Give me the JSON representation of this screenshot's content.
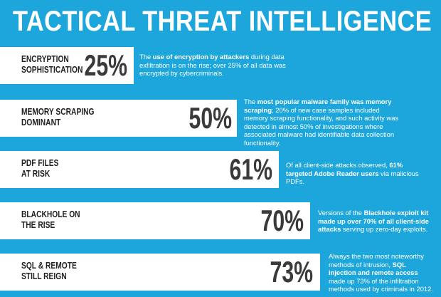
{
  "title": "TACTICAL THREAT INTELLIGENCE",
  "rows": [
    {
      "label": "ENCRYPTION\nSOPHISTICATION",
      "percent": "25%",
      "desc_parts": [
        {
          "t": "The ",
          "b": false
        },
        {
          "t": "use of encryption by attackers",
          "b": true
        },
        {
          "t": " during data exfiltration is on the rise; over 25% of all data was encrypted by cybercriminals.",
          "b": false
        }
      ]
    },
    {
      "label": "MEMORY SCRAPING\nDOMINANT",
      "percent": "50%",
      "desc_parts": [
        {
          "t": "The ",
          "b": false
        },
        {
          "t": "most popular malware family was memory scraping",
          "b": true
        },
        {
          "t": "; 20% of new case samples included memory scraping functionality, and such activity was detected in almost 50% of investigations where associated malware had identifiable data collection functionality.",
          "b": false
        }
      ]
    },
    {
      "label": "PDF FILES\nAT RISK",
      "percent": "61%",
      "desc_parts": [
        {
          "t": "Of all client-side attacks observed, ",
          "b": false
        },
        {
          "t": "61% targeted Adobe Reader users",
          "b": true
        },
        {
          "t": " via malicious PDFs.",
          "b": false
        }
      ]
    },
    {
      "label": "BLACKHOLE ON\nTHE RISE",
      "percent": "70%",
      "desc_parts": [
        {
          "t": "Versions of the ",
          "b": false
        },
        {
          "t": "Blackhole exploit kit made up over 70% of all client-side attacks",
          "b": true
        },
        {
          "t": " serving up zero-day exploits.",
          "b": false
        }
      ]
    },
    {
      "label": "SQL & REMOTE\nSTILL REIGN",
      "percent": "73%",
      "desc_parts": [
        {
          "t": "Always the two most noteworthy methods of intrusion, ",
          "b": false
        },
        {
          "t": "SQL injection and remote access",
          "b": true
        },
        {
          "t": " made up 73% of the infiltration methods used by criminals in 2012.",
          "b": false
        }
      ]
    }
  ]
}
